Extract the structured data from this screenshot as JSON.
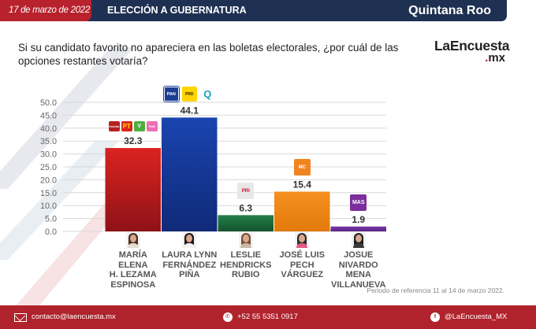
{
  "header": {
    "date": "17 de marzo de 2022",
    "title": "ELECCIÓN A GUBERNATURA",
    "region": "Quintana Roo"
  },
  "question": "Si su candidato favorito no apareciera en las boletas electorales, ¿por cuál de las opciones restantes votaría?",
  "brand": {
    "name": "LaEncuesta",
    "tld_dot": ".",
    "tld": "mx"
  },
  "colors": {
    "header_bg": "#1f3152",
    "date_bg": "#b8222d",
    "footer_bg": "#b0222c"
  },
  "chart_data": {
    "type": "bar",
    "title": "Si su candidato favorito no apareciera en las boletas electorales, ¿por cuál de las opciones restantes votaría?",
    "xlabel": "",
    "ylabel": "",
    "ylim": [
      0,
      50
    ],
    "yticks": [
      "0.0",
      "5.0",
      "10.0",
      "15.0",
      "20.0",
      "25.0",
      "30.0",
      "35.0",
      "40.0",
      "45.0",
      "50.0"
    ],
    "grid": true,
    "legend": "none",
    "categories": [
      "MARÍA ELENA H. LEZAMA ESPINOSA",
      "LAURA LYNN FERNÁNDEZ PIÑA",
      "LESLIE HENDRICKS RUBIO",
      "JOSÉ LUIS PECH VÁRGUEZ",
      "JOSUE NIVARDO MENA VILLANUEVA"
    ],
    "name_lines": [
      [
        "MARÍA ELENA",
        "H. LEZAMA",
        "ESPINOSA"
      ],
      [
        "LAURA LYNN",
        "FERNÁNDEZ",
        "PIÑA"
      ],
      [
        "LESLIE",
        "HENDRICKS",
        "RUBIO"
      ],
      [
        "JOSÉ LUIS",
        "PECH",
        "VÁRGUEZ"
      ],
      [
        "JOSUE",
        "NIVARDO MENA",
        "VILLANUEVA"
      ]
    ],
    "values": [
      32.3,
      44.1,
      6.3,
      15.4,
      1.9
    ],
    "value_labels": [
      "32.3",
      "44.1",
      "6.3",
      "15.4",
      "1.9"
    ],
    "bar_colors": [
      [
        "#dc2320",
        "#8e1218"
      ],
      [
        "#1a44b0",
        "#0f2a78"
      ],
      [
        "#24804a",
        "#15522c"
      ],
      [
        "#f5901f",
        "#e27a0c"
      ],
      [
        "#7c3aa6",
        "#5a2487"
      ]
    ],
    "coalitions": [
      [
        "MORENA",
        "PT",
        "VERDE",
        "FUERZA X MÉXICO"
      ],
      [
        "PAN",
        "PRD",
        "CONFIANZA"
      ],
      [
        "PRI"
      ],
      [
        "MC"
      ],
      [
        "MAS"
      ]
    ]
  },
  "period_note": "Periodo de referencia 11 al 14 de marzo 2022.",
  "footer": {
    "email": "contacto@laencuesta.mx",
    "phone": "+52 55 5351 0917",
    "twitter": "@LaEncuesta_MX"
  }
}
